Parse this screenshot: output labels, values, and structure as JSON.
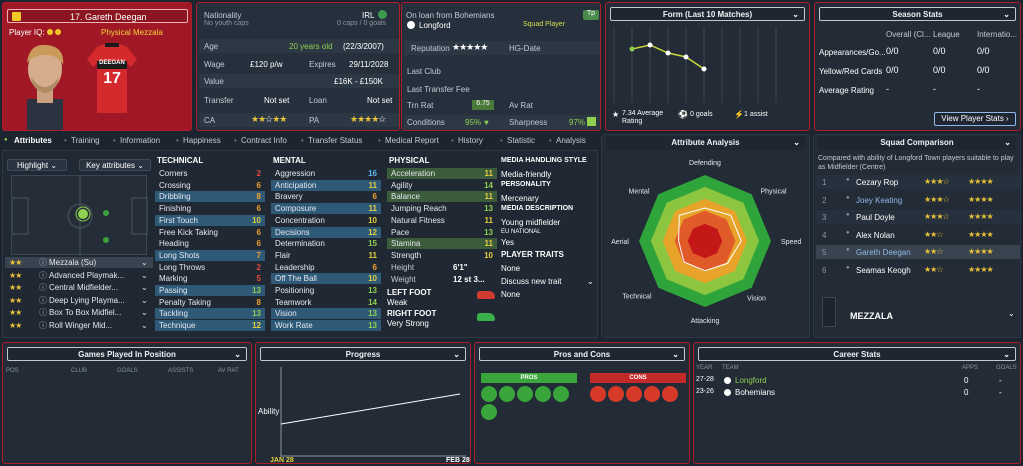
{
  "player": {
    "number_name": "17. Gareth Deegan",
    "iq_label": "Player IQ:",
    "role_label": "Physical Mezzala",
    "shirt_name": "DEEGAN",
    "shirt_number": "17"
  },
  "info": {
    "nationality_label": "Nationality",
    "youth_caps": "No youth caps",
    "nation": "IRL",
    "caps": "0 caps / 0 goals",
    "age_label": "Age",
    "age_value": "20 years old",
    "dob": "(22/3/2007)",
    "wage_label": "Wage",
    "wage_value": "£120 p/w",
    "expires_label": "Expires",
    "expires_value": "29/11/2028",
    "value_label": "Value",
    "value_value": "£16K - £150K",
    "transfer_label": "Transfer",
    "transfer_value": "Not set",
    "loan_label": "Loan",
    "loan_value": "Not set",
    "ca_label": "CA",
    "pa_label": "PA",
    "loan_from": "On loan from Bohemians",
    "club": "Longford",
    "squad_status": "Squad Player",
    "tp_badge": "Tp",
    "reputation_label": "Reputation",
    "hg_label": "HG-Date",
    "last_club_label": "Last Club",
    "last_fee_label": "Last Transfer Fee",
    "trn_rat_label": "Trn Rat",
    "trn_rat_value": "6.75",
    "av_rat_label": "Av Rat",
    "conditions_label": "Conditions",
    "conditions_value": "95%",
    "sharpness_label": "Sharpness",
    "sharpness_value": "97%"
  },
  "form": {
    "title": "Form (Last 10 Matches)",
    "avg_rating": "7.34 Average Rating",
    "goals": "0 goals",
    "assists": "1 assist",
    "values": [
      7.6,
      7.7,
      7.5,
      7.4,
      7.1
    ]
  },
  "season": {
    "title": "Season Stats",
    "col1": "Overall (Cl...",
    "col2": "League",
    "col3": "Internatio...",
    "rows": [
      {
        "label": "Appearances/Go...",
        "v1": "0/0",
        "v2": "0/0",
        "v3": "0/0"
      },
      {
        "label": "Yellow/Red Cards",
        "v1": "0/0",
        "v2": "0/0",
        "v3": "0/0"
      },
      {
        "label": "Average Rating",
        "v1": "-",
        "v2": "-",
        "v3": "-"
      }
    ],
    "button": "View Player Stats"
  },
  "tabs": [
    "Attributes",
    "Training",
    "Information",
    "Happiness",
    "Contract Info",
    "Transfer Status",
    "Medical Report",
    "History",
    "Statistic",
    "Analysis"
  ],
  "controls": {
    "highlight": "Highlight",
    "key_attributes": "Key attributes"
  },
  "roles": [
    "Mezzala (Su)",
    "Advanced Playmak...",
    "Central Midfielder...",
    "Deep Lying Playma...",
    "Box To Box Midfiel...",
    "Roll Winger Mid..."
  ],
  "technical": {
    "title": "TECHNICAL",
    "items": [
      [
        "Corners",
        "2"
      ],
      [
        "Crossing",
        "6"
      ],
      [
        "Dribbling",
        "8"
      ],
      [
        "Finishing",
        "6"
      ],
      [
        "First Touch",
        "10"
      ],
      [
        "Free Kick Taking",
        "6"
      ],
      [
        "Heading",
        "6"
      ],
      [
        "Long Shots",
        "7"
      ],
      [
        "Long Throws",
        "2"
      ],
      [
        "Marking",
        "5"
      ],
      [
        "Passing",
        "13"
      ],
      [
        "Penalty Taking",
        "8"
      ],
      [
        "Tackling",
        "13"
      ],
      [
        "Technique",
        "12"
      ]
    ]
  },
  "mental": {
    "title": "MENTAL",
    "items": [
      [
        "Aggression",
        "16"
      ],
      [
        "Anticipation",
        "11"
      ],
      [
        "Bravery",
        "6"
      ],
      [
        "Composure",
        "11"
      ],
      [
        "Concentration",
        "10"
      ],
      [
        "Decisions",
        "12"
      ],
      [
        "Determination",
        "15"
      ],
      [
        "Flair",
        "11"
      ],
      [
        "Leadership",
        "6"
      ],
      [
        "Off The Ball",
        "10"
      ],
      [
        "Positioning",
        "13"
      ],
      [
        "Teamwork",
        "14"
      ],
      [
        "Vision",
        "13"
      ],
      [
        "Work Rate",
        "13"
      ]
    ]
  },
  "physical": {
    "title": "PHYSICAL",
    "items": [
      [
        "Acceleration",
        "11"
      ],
      [
        "Agility",
        "14"
      ],
      [
        "Balance",
        "11"
      ],
      [
        "Jumping Reach",
        "13"
      ],
      [
        "Natural Fitness",
        "11"
      ],
      [
        "Pace",
        "13"
      ],
      [
        "Stamina",
        "11"
      ],
      [
        "Strength",
        "10"
      ]
    ],
    "height_label": "Height",
    "height": "6'1\"",
    "weight_label": "Weight",
    "weight": "12 st 3...",
    "left_foot_label": "LEFT FOOT",
    "left_foot": "Weak",
    "right_foot_label": "RIGHT FOOT",
    "right_foot": "Very Strong"
  },
  "media": {
    "style_label": "MEDIA HANDLING STYLE",
    "style": "Media-friendly",
    "personality_label": "PERSONALITY",
    "personality": "Mercenary",
    "desc_label": "MEDIA DESCRIPTION",
    "desc": "Young midfielder",
    "eu_label": "EU NATIONAL",
    "eu": "Yes",
    "traits_label": "PLAYER TRAITS",
    "traits": "None",
    "discuss": "Discuss new trait",
    "none2": "None"
  },
  "attr_analysis": {
    "title": "Attribute Analysis",
    "axes": [
      "Defending",
      "Physical",
      "Speed",
      "Vision",
      "Attacking",
      "Technical",
      "Aerial",
      "Mental"
    ],
    "values": [
      0.5,
      0.55,
      0.55,
      0.48,
      0.45,
      0.45,
      0.4,
      0.55
    ]
  },
  "squad": {
    "title": "Squad Comparison",
    "subtitle": "Compared with ability of Longford Town players suitable to play as Midfielder (Centre)",
    "rows": [
      {
        "rank": "1",
        "name": "Cezary Rop"
      },
      {
        "rank": "2",
        "name": "Joey Keating"
      },
      {
        "rank": "3",
        "name": "Paul Doyle"
      },
      {
        "rank": "4",
        "name": "Alex Nolan"
      },
      {
        "rank": "5",
        "name": "Gareth Deegan"
      },
      {
        "rank": "6",
        "name": "Seamas Keogh"
      }
    ],
    "position": "MEZZALA"
  },
  "games_pos": {
    "title": "Games Played In Position",
    "cols": [
      "POS",
      "CLUB",
      "GOALS",
      "ASSISTS",
      "AV RAT"
    ]
  },
  "progress": {
    "title": "Progress",
    "ability": "Ability",
    "start": "JAN 28",
    "end": "FEB 28"
  },
  "proscons": {
    "title": "Pros and Cons",
    "pros": "PROS",
    "cons": "CONS"
  },
  "career": {
    "title": "Career Stats",
    "cols": [
      "YEAR",
      "TEAM",
      "APPS",
      "GOALS"
    ],
    "rows": [
      {
        "year": "27-28",
        "team": "Longford",
        "apps": "0",
        "goals": "-"
      },
      {
        "year": "23-26",
        "team": "Bohemians",
        "apps": "0",
        "goals": "-"
      }
    ]
  },
  "colors": {
    "accent": "#b01c2c",
    "panel": "#26303c",
    "highlight": "#2e5a78",
    "green": "#8fd14f"
  }
}
